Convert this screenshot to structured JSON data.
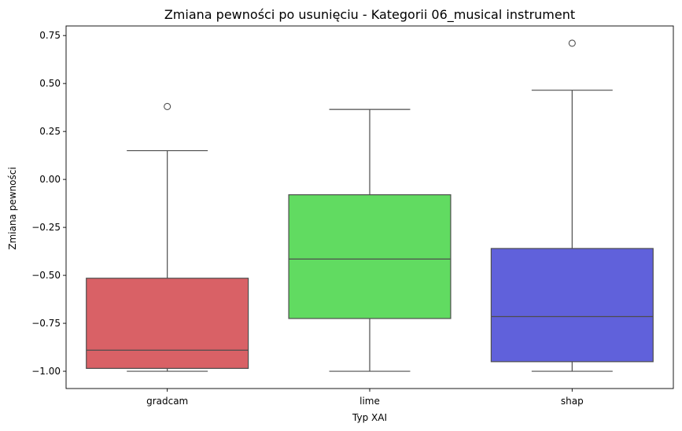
{
  "chart_data": {
    "type": "box",
    "title": "Zmiana pewności po usunięciu - Kategorii 06_musical instrument",
    "xlabel": "Typ XAI",
    "ylabel": "Zmiana pewności",
    "ylim": [
      -1.09,
      0.8
    ],
    "yticks": [
      -1.0,
      -0.75,
      -0.5,
      -0.25,
      0.0,
      0.25,
      0.5,
      0.75
    ],
    "ytick_labels": [
      "−1.00",
      "−0.75",
      "−0.50",
      "−0.25",
      "0.00",
      "0.25",
      "0.50",
      "0.75"
    ],
    "grid": false,
    "categories": [
      "gradcam",
      "lime",
      "shap"
    ],
    "boxes": [
      {
        "category": "gradcam",
        "whisker_low": -1.0,
        "q1": -0.985,
        "median": -0.89,
        "q3": -0.515,
        "whisker_high": 0.15,
        "outliers": [
          0.38
        ],
        "color": "#d96166"
      },
      {
        "category": "lime",
        "whisker_low": -1.0,
        "q1": -0.725,
        "median": -0.415,
        "q3": -0.08,
        "whisker_high": 0.365,
        "outliers": [],
        "color": "#61db61"
      },
      {
        "category": "shap",
        "whisker_low": -1.0,
        "q1": -0.95,
        "median": -0.715,
        "q3": -0.36,
        "whisker_high": 0.465,
        "outliers": [
          0.71
        ],
        "color": "#6061db"
      }
    ]
  }
}
